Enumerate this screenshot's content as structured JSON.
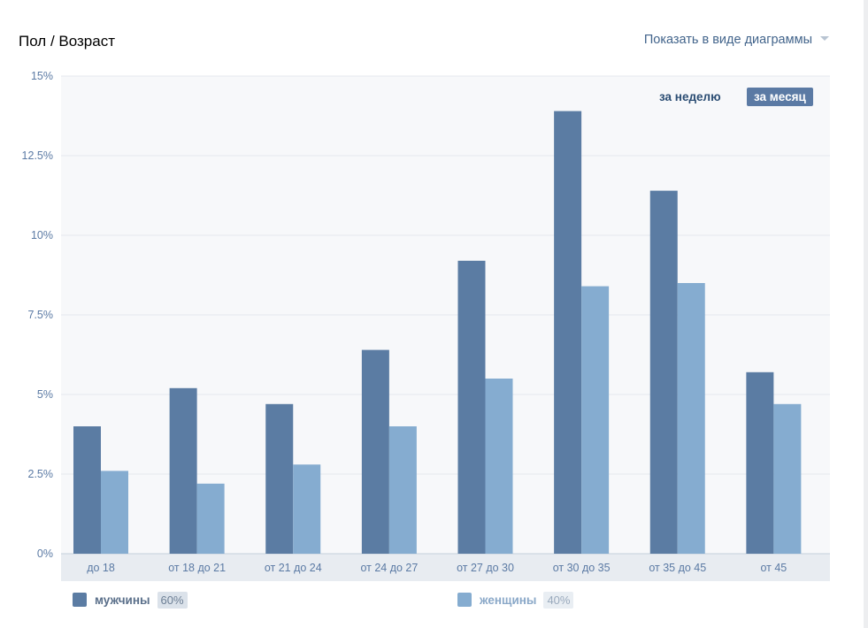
{
  "header": {
    "title": "Пол / Возраст",
    "show_as": "Показать в виде диаграммы"
  },
  "period": {
    "week": "за неделю",
    "month": "за месяц",
    "active": "month"
  },
  "legend": {
    "male_label": "мужчины",
    "male_pct": "60%",
    "female_label": "женщины",
    "female_pct": "40%"
  },
  "colors": {
    "male": "#5b7ca3",
    "female": "#85acd0",
    "plot_bg": "#f7f8fa",
    "grid": "#e4e8ee",
    "axis_text": "#5b7aa4"
  },
  "chart_data": {
    "type": "bar",
    "categories": [
      "до 18",
      "от 18 до 21",
      "от 21 до 24",
      "от 24 до 27",
      "от 27 до 30",
      "от 30 до 35",
      "от 35 до 45",
      "от 45"
    ],
    "series": [
      {
        "name": "мужчины",
        "values": [
          4.0,
          5.2,
          4.7,
          6.4,
          9.2,
          13.9,
          11.4,
          5.7
        ]
      },
      {
        "name": "женщины",
        "values": [
          2.6,
          2.2,
          2.8,
          4.0,
          5.5,
          8.4,
          8.5,
          4.7
        ]
      }
    ],
    "y_ticks": [
      "0%",
      "2.5%",
      "5%",
      "7.5%",
      "10%",
      "12.5%",
      "15%"
    ],
    "ylim": [
      0,
      15
    ],
    "grid": true,
    "legend_position": "bottom"
  }
}
